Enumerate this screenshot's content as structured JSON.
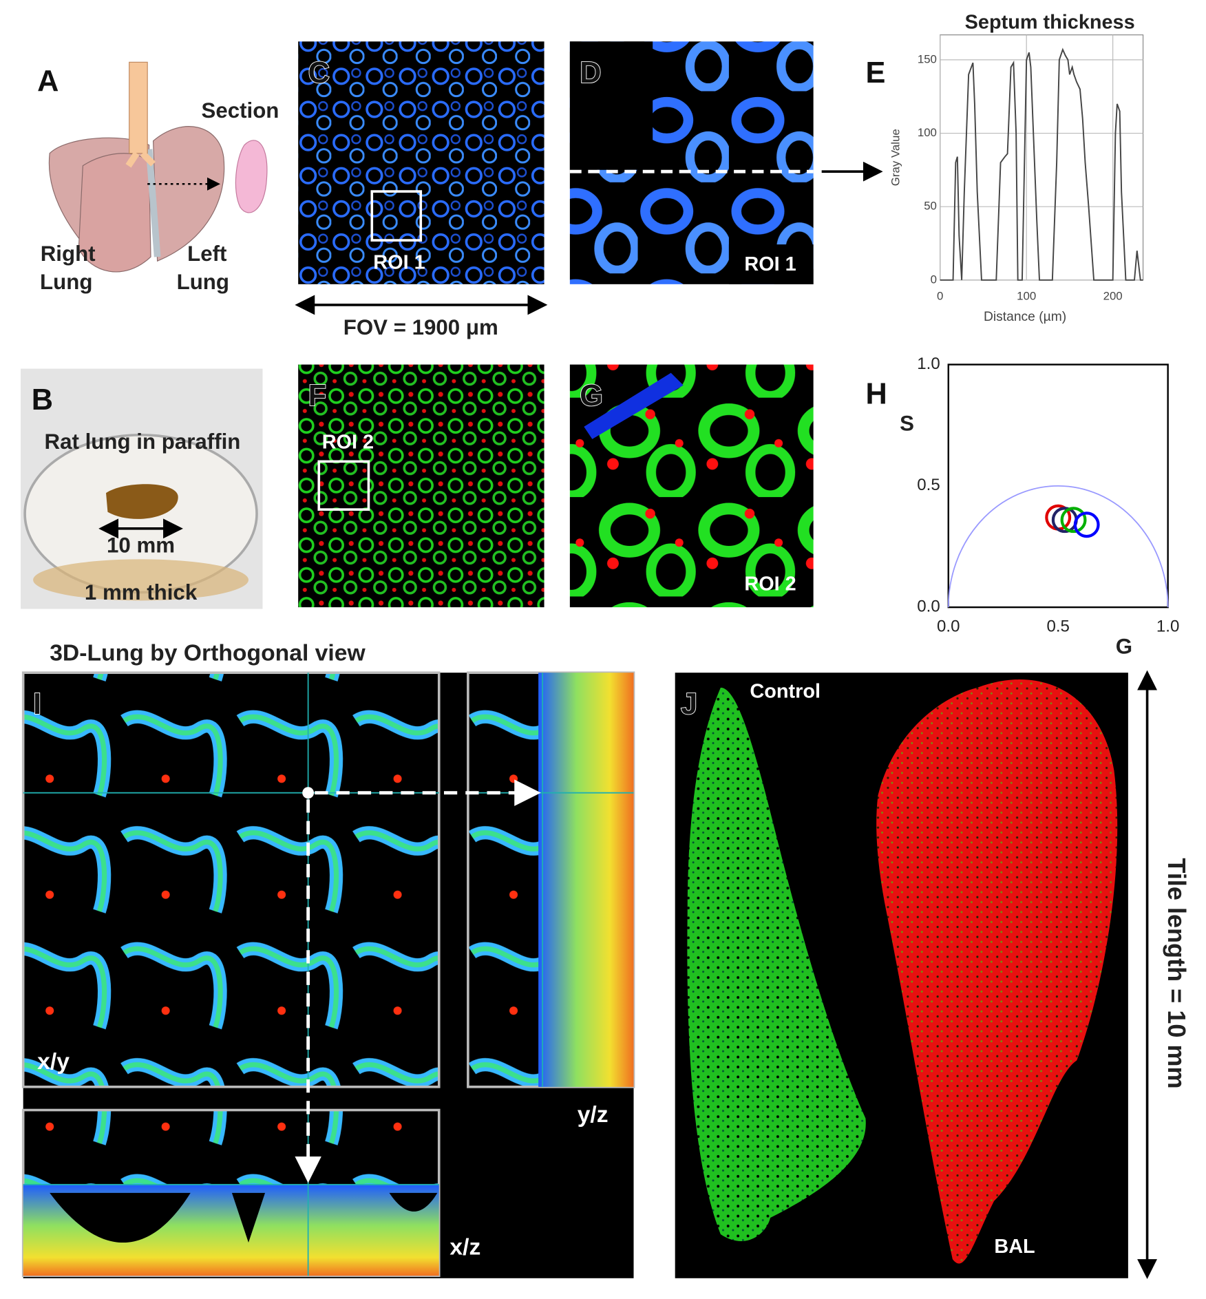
{
  "panels": {
    "A": {
      "label": "A",
      "section": "Section",
      "right_lung": [
        "Right",
        "Lung"
      ],
      "left_lung": [
        "Left",
        "Lung"
      ]
    },
    "B": {
      "label": "B",
      "caption": "Rat lung in paraffin",
      "width": "10 mm",
      "thickness": "1 mm thick"
    },
    "C": {
      "label": "C",
      "roi": "ROI 1",
      "fov": "FOV = 1900 μm"
    },
    "D": {
      "label": "D",
      "roi": "ROI 1"
    },
    "E": {
      "label": "E"
    },
    "F": {
      "label": "F",
      "roi": "ROI 2"
    },
    "G": {
      "label": "G",
      "roi": "ROI 2"
    },
    "H": {
      "label": "H"
    },
    "I": {
      "label": "I",
      "title": "3D-Lung by Orthogonal view",
      "xy": "x/y",
      "yz": "y/z",
      "xz": "x/z"
    },
    "J": {
      "label": "J",
      "control": "Control",
      "bal": "BAL",
      "tile": "Tile length = 10 mm"
    }
  },
  "chart_data": [
    {
      "type": "line",
      "title": "Septum thickness",
      "xlabel": "Distance (µm)",
      "ylabel": "Gray Value",
      "x": [
        0,
        15,
        18,
        20,
        22,
        25,
        28,
        33,
        38,
        40,
        43,
        48,
        55,
        60,
        65,
        70,
        75,
        78,
        82,
        85,
        88,
        90,
        95,
        97,
        100,
        103,
        105,
        108,
        112,
        115,
        120,
        125,
        130,
        135,
        138,
        142,
        145,
        148,
        150,
        153,
        155,
        158,
        162,
        165,
        168,
        172,
        178,
        185,
        195,
        200,
        203,
        205,
        208,
        210,
        215,
        220,
        225,
        228,
        232,
        235
      ],
      "series": [
        {
          "color": "#444444",
          "values": [
            0,
            0,
            80,
            84,
            30,
            0,
            60,
            140,
            148,
            120,
            60,
            0,
            0,
            0,
            0,
            80,
            84,
            86,
            145,
            148,
            100,
            0,
            0,
            60,
            150,
            155,
            145,
            100,
            40,
            0,
            0,
            0,
            0,
            80,
            150,
            157,
            153,
            150,
            140,
            145,
            140,
            135,
            130,
            110,
            80,
            50,
            0,
            0,
            0,
            0,
            100,
            120,
            115,
            60,
            0,
            0,
            0,
            20,
            0,
            0
          ]
        }
      ],
      "xlim": [
        0,
        235
      ],
      "ylim": [
        0,
        167
      ],
      "xticks": [
        0,
        100,
        200
      ],
      "yticks": [
        0,
        50,
        100,
        150
      ],
      "grid": true
    },
    {
      "type": "scatter",
      "xlabel": "G",
      "ylabel": "S",
      "universal_circle": true,
      "circle_color": "#9999ff",
      "series": [
        {
          "color": "#e00000",
          "x": [
            0.5
          ],
          "values": [
            0.37
          ]
        },
        {
          "color": "#222266",
          "x": [
            0.53
          ],
          "values": [
            0.36
          ]
        },
        {
          "color": "#00b000",
          "x": [
            0.57
          ],
          "values": [
            0.36
          ]
        },
        {
          "color": "#0000ff",
          "x": [
            0.63
          ],
          "values": [
            0.34
          ]
        }
      ],
      "xlim": [
        0,
        1
      ],
      "ylim": [
        0,
        1
      ],
      "xticks": [
        {
          "value": 0,
          "label": "0.0"
        },
        {
          "value": 0.5,
          "label": "0.5"
        },
        {
          "value": 1,
          "label": "1.0"
        }
      ],
      "yticks": [
        {
          "value": 0,
          "label": "0.0"
        },
        {
          "value": 0.5,
          "label": "0.5"
        },
        {
          "value": 1,
          "label": "1.0"
        }
      ]
    }
  ]
}
